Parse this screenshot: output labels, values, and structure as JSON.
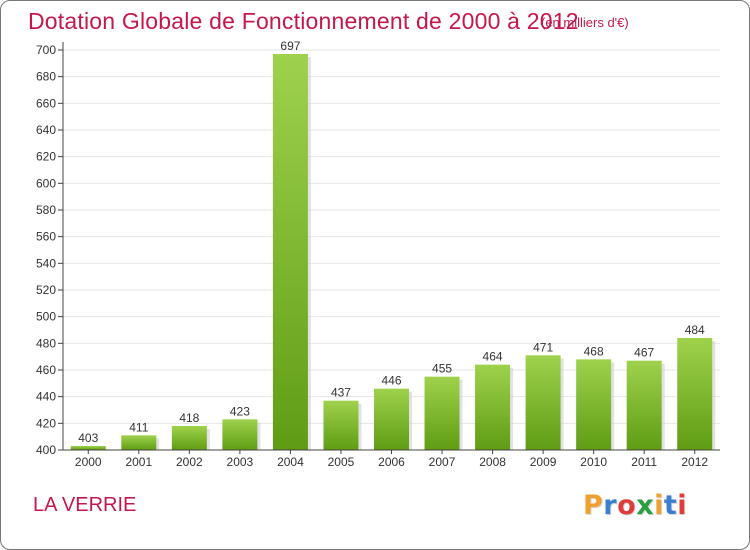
{
  "header": {
    "title": "Dotation Globale de Fonctionnement de 2000 à 2012",
    "unit": "(en milliers d'€)"
  },
  "footer": {
    "commune": "LA VERRIE",
    "logo_text": "Proxiti",
    "logo_colors": [
      "#f0a030",
      "#3a7fd0",
      "#e03c3c",
      "#2b9e3f",
      "#f0a030",
      "#3a7fd0",
      "#e03c3c"
    ]
  },
  "colors": {
    "bar_light": "#9fd24c",
    "bar_dark": "#5f9c14",
    "axis": "#444444",
    "grid": "#e6e6e6",
    "accent": "#c4184a"
  },
  "chart_data": {
    "type": "bar",
    "title": "Dotation Globale de Fonctionnement de 2000 à 2012",
    "subtitle": "(en milliers d'€)",
    "categories": [
      "2000",
      "2001",
      "2002",
      "2003",
      "2004",
      "2005",
      "2006",
      "2007",
      "2008",
      "2009",
      "2010",
      "2011",
      "2012"
    ],
    "values": [
      403,
      411,
      418,
      423,
      697,
      437,
      446,
      455,
      464,
      471,
      468,
      467,
      484
    ],
    "ylim": [
      400,
      700
    ],
    "yticks": [
      400,
      420,
      440,
      460,
      480,
      500,
      520,
      540,
      560,
      580,
      600,
      620,
      640,
      660,
      680,
      700
    ],
    "grid": true,
    "legend": "none"
  }
}
